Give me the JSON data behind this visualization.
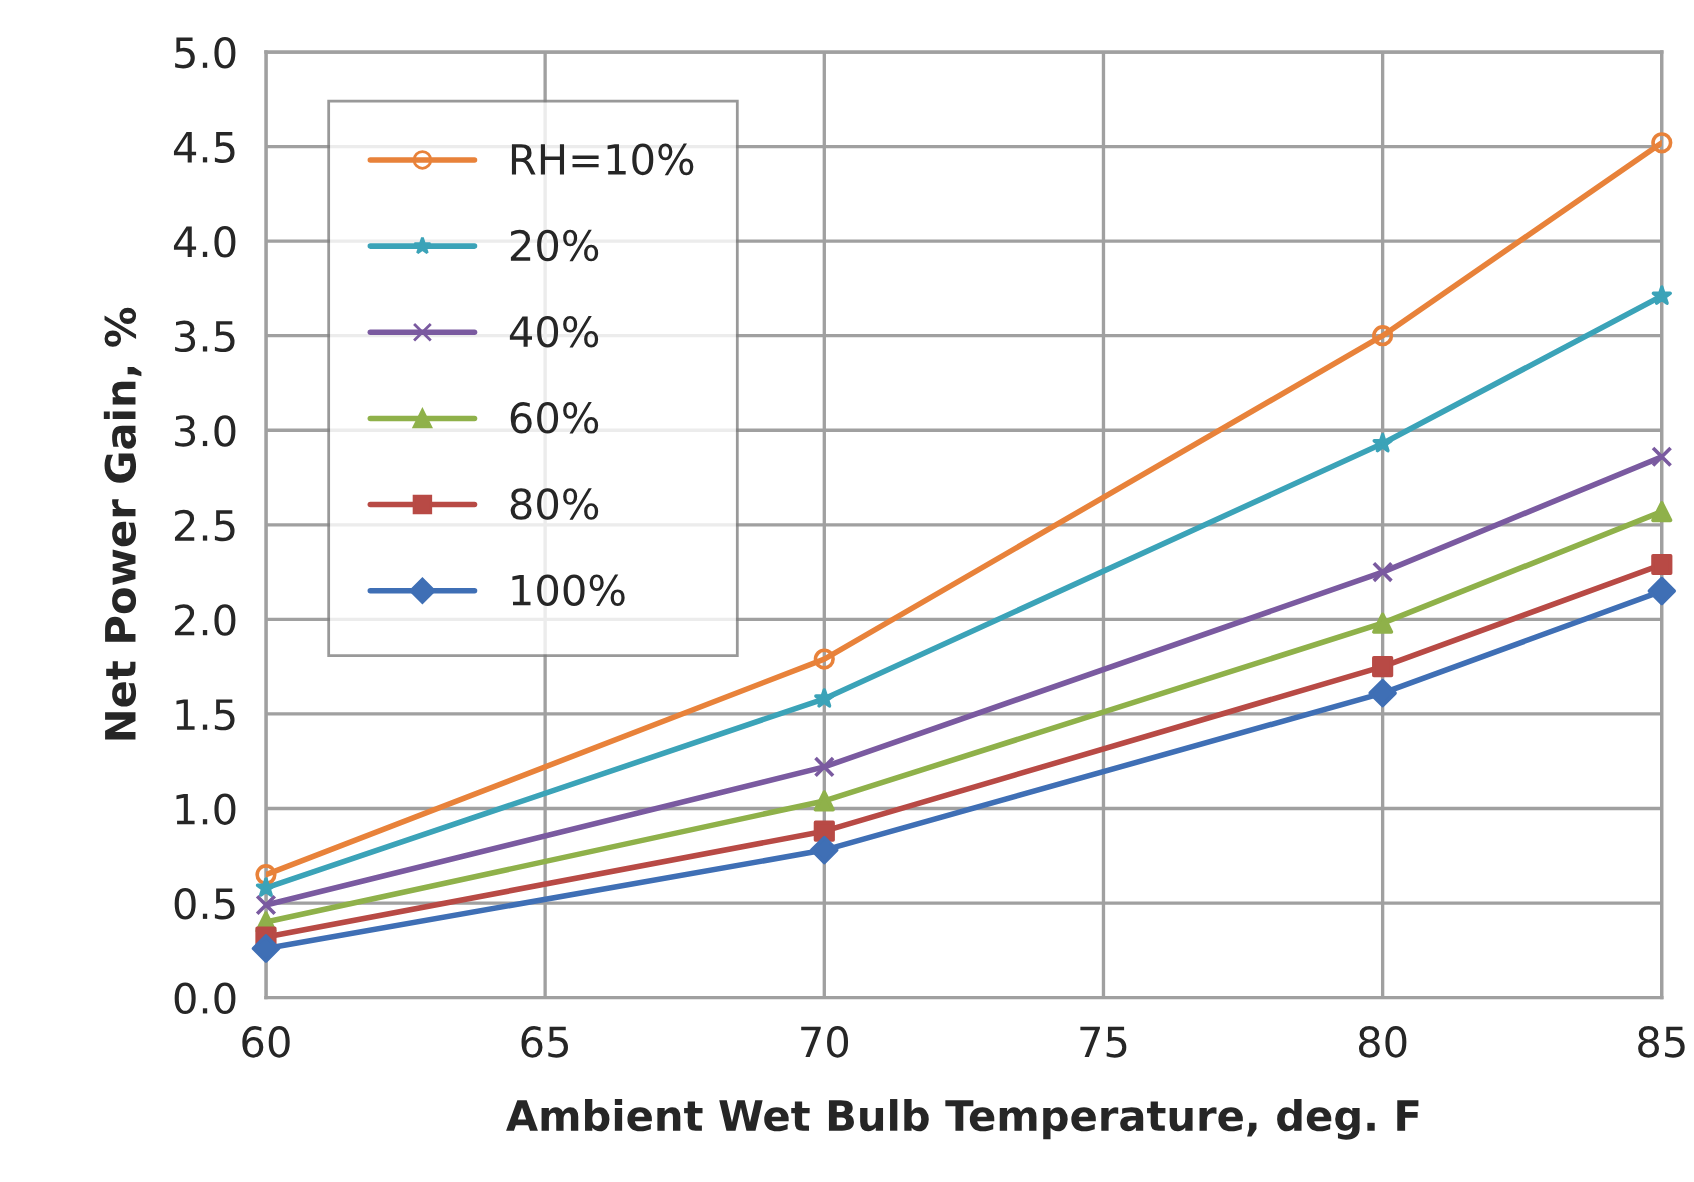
{
  "chart_data": {
    "type": "line",
    "xlabel": "Ambient Wet Bulb Temperature, deg. F",
    "ylabel": "Net Power Gain, %",
    "x": [
      60,
      70,
      80,
      85
    ],
    "series": [
      {
        "name": "RH=10%",
        "color": "#e8823a",
        "marker": "circle",
        "values": [
          0.65,
          1.79,
          3.5,
          4.52
        ]
      },
      {
        "name": "20%",
        "color": "#3ba3b8",
        "marker": "star",
        "values": [
          0.58,
          1.58,
          2.93,
          3.71
        ]
      },
      {
        "name": "40%",
        "color": "#7a5aa0",
        "marker": "cross",
        "values": [
          0.49,
          1.22,
          2.25,
          2.86
        ]
      },
      {
        "name": "60%",
        "color": "#8fb14a",
        "marker": "triangle",
        "values": [
          0.4,
          1.04,
          1.98,
          2.57
        ]
      },
      {
        "name": "80%",
        "color": "#b84a45",
        "marker": "square",
        "values": [
          0.32,
          0.88,
          1.75,
          2.29
        ]
      },
      {
        "name": "100%",
        "color": "#3f6fb5",
        "marker": "diamond",
        "values": [
          0.26,
          0.78,
          1.61,
          2.15
        ]
      }
    ],
    "xlim": [
      60,
      85
    ],
    "xticks": [
      60,
      65,
      70,
      75,
      80,
      85
    ],
    "ylim": [
      0,
      5
    ],
    "yticks": [
      {
        "value": 0,
        "label": "0.0"
      },
      {
        "value": 0.5,
        "label": "0.5"
      },
      {
        "value": 1,
        "label": "1.0"
      },
      {
        "value": 1.5,
        "label": "1.5"
      },
      {
        "value": 2,
        "label": "2.0"
      },
      {
        "value": 2.5,
        "label": "2.5"
      },
      {
        "value": 3,
        "label": "3.0"
      },
      {
        "value": 3.5,
        "label": "3.5"
      },
      {
        "value": 4,
        "label": "4.0"
      },
      {
        "value": 4.5,
        "label": "4.5"
      },
      {
        "value": 5,
        "label": "5.0"
      }
    ],
    "grid": true,
    "legend": "top left",
    "line_style": "solid"
  }
}
